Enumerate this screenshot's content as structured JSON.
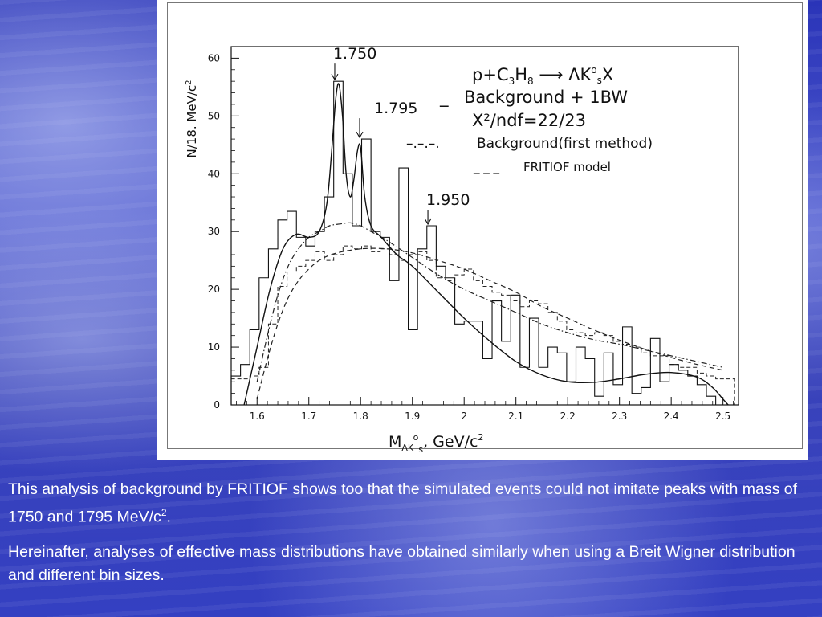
{
  "chart_data": {
    "type": "histogram",
    "xlabel": "M<sub>ΛK⁰s</sub>, GeV/c²",
    "xlabel_main": "M",
    "xlabel_sub": "ΛK",
    "xlabel_sup": "o",
    "xlabel_sub2": "s",
    "xlabel_tail": ", GeV/c",
    "xlabel_tail_sup": "2",
    "ylabel": "N/18. MeV/c",
    "ylabel_sup": "2",
    "xlim": [
      1.55,
      2.53
    ],
    "ylim": [
      0,
      62
    ],
    "x_ticks": [
      "1.6",
      "1.7",
      "1.8",
      "1.9",
      "2",
      "2.1",
      "2.2",
      "2.3",
      "2.4",
      "2.5"
    ],
    "x_tick_values": [
      1.6,
      1.7,
      1.8,
      1.9,
      2.0,
      2.1,
      2.2,
      2.3,
      2.4,
      2.5
    ],
    "y_ticks": [
      "0",
      "10",
      "20",
      "30",
      "40",
      "50",
      "60"
    ],
    "y_tick_values": [
      0,
      10,
      20,
      30,
      40,
      50,
      60
    ],
    "reaction": {
      "lhs": "p+C",
      "c_sub": "3",
      "h": "H",
      "h_sub": "8",
      "rhs": "ΛK",
      "k_sup": "o",
      "k_sub": "s",
      "x": "X"
    },
    "legend": [
      {
        "marker": "_",
        "text": "Background + 1BW"
      },
      {
        "marker": "",
        "text": "X²/ndf=22/23"
      },
      {
        "marker": "–.–.–.",
        "text": "Background(first method)"
      },
      {
        "marker": "_ _ _",
        "text": "FRITIOF model"
      }
    ],
    "annotations": [
      {
        "text": "1.750",
        "x": 1.75,
        "y": 56
      },
      {
        "text": "1.795",
        "x": 1.795,
        "y": 46
      },
      {
        "text": "1.950",
        "x": 1.93,
        "y": 31
      }
    ],
    "data_histogram": {
      "name": "",
      "edges": [
        1.55,
        1.568,
        1.586,
        1.604,
        1.622,
        1.64,
        1.658,
        1.676,
        1.694,
        1.712,
        1.73,
        1.748,
        1.766,
        1.784,
        1.802,
        1.82,
        1.838,
        1.856,
        1.874,
        1.892,
        1.91,
        1.928,
        1.946,
        1.964,
        1.982,
        2.0,
        2.018,
        2.036,
        2.054,
        2.072,
        2.09,
        2.108,
        2.126,
        2.144,
        2.162,
        2.18,
        2.198,
        2.216,
        2.234,
        2.252,
        2.27,
        2.288,
        2.306,
        2.324,
        2.342,
        2.36,
        2.378,
        2.396,
        2.414,
        2.432,
        2.45,
        2.468,
        2.486,
        2.504
      ],
      "values": [
        5,
        7,
        13,
        22,
        27,
        32,
        33.5,
        29,
        27.5,
        30,
        36,
        56,
        40,
        31,
        46,
        30,
        29,
        21.5,
        41,
        13,
        27,
        31,
        24,
        22,
        14,
        14.5,
        14.5,
        8,
        18,
        11,
        19,
        6.5,
        15,
        6.5,
        10,
        9,
        4,
        10,
        8,
        1.5,
        9,
        3.5,
        13.5,
        2,
        3,
        11.5,
        4,
        7,
        6,
        5,
        3.5,
        1.5,
        0
      ]
    },
    "fritiof_histogram": {
      "name": "",
      "edges": [
        1.55,
        1.568,
        1.586,
        1.604,
        1.622,
        1.64,
        1.658,
        1.676,
        1.694,
        1.712,
        1.73,
        1.748,
        1.766,
        1.784,
        1.802,
        1.82,
        1.838,
        1.856,
        1.874,
        1.892,
        1.91,
        1.928,
        1.946,
        1.964,
        1.982,
        2.0,
        2.018,
        2.036,
        2.054,
        2.072,
        2.09,
        2.108,
        2.126,
        2.144,
        2.162,
        2.18,
        2.198,
        2.216,
        2.234,
        2.252,
        2.27,
        2.288,
        2.306,
        2.324,
        2.342,
        2.36,
        2.378,
        2.396,
        2.414,
        2.432,
        2.45,
        2.468,
        2.486,
        2.504,
        2.522
      ],
      "values": [
        4.5,
        4.5,
        5,
        6.5,
        14,
        20.5,
        23,
        24,
        25,
        26.5,
        25,
        26,
        27.5,
        27,
        27.5,
        26.5,
        27,
        26,
        25,
        26,
        26.5,
        25,
        22,
        21.5,
        22.5,
        23.5,
        21.5,
        20.5,
        19.5,
        19,
        18,
        17,
        18,
        17.5,
        16,
        14.5,
        13,
        12.5,
        12,
        12.5,
        12,
        11,
        10.5,
        10,
        9,
        8.5,
        8.5,
        7,
        6.5,
        6.5,
        5.5,
        5,
        4.5,
        4.5
      ]
    },
    "fit_curve": {
      "name": "",
      "x": [
        1.575,
        1.6,
        1.625,
        1.65,
        1.675,
        1.7,
        1.72,
        1.735,
        1.745,
        1.752,
        1.758,
        1.765,
        1.772,
        1.78,
        1.787,
        1.794,
        1.8,
        1.808,
        1.82,
        1.84,
        1.87,
        1.9,
        1.95,
        2.0,
        2.05,
        2.1,
        2.15,
        2.2,
        2.25,
        2.3,
        2.35,
        2.4,
        2.45,
        2.48,
        2.5,
        2.51
      ],
      "y": [
        0,
        10,
        20,
        27,
        29.5,
        29,
        30,
        35,
        45,
        53,
        55.5,
        50,
        40,
        36,
        39,
        44,
        44.5,
        36,
        31,
        29,
        26,
        24,
        19.5,
        15,
        11,
        7.5,
        5.2,
        4,
        3.9,
        4.5,
        5.3,
        5.6,
        4.8,
        3,
        1,
        0
      ]
    },
    "background_curve": {
      "name": "",
      "x": [
        1.6,
        1.62,
        1.64,
        1.66,
        1.68,
        1.7,
        1.72,
        1.74,
        1.76,
        1.78,
        1.8,
        1.82,
        1.85,
        1.9,
        1.95,
        2.0,
        2.05,
        2.1,
        2.15,
        2.2,
        2.25,
        2.3,
        2.35,
        2.4,
        2.45,
        2.5
      ],
      "y": [
        4,
        12,
        19,
        24,
        27,
        29,
        30,
        31,
        31.3,
        31.5,
        31,
        30,
        28.5,
        25.5,
        22.5,
        20,
        18,
        16,
        14,
        12.5,
        11.3,
        10.5,
        9.5,
        8.5,
        7.5,
        6.5
      ]
    },
    "fritiof_curve": {
      "name": "",
      "x": [
        1.6,
        1.62,
        1.64,
        1.66,
        1.68,
        1.7,
        1.72,
        1.75,
        1.8,
        1.85,
        1.9,
        1.95,
        2.0,
        2.05,
        2.1,
        2.15,
        2.2,
        2.25,
        2.3,
        2.35,
        2.4,
        2.45,
        2.5
      ],
      "y": [
        1,
        8,
        14,
        18.5,
        21.5,
        23.5,
        25,
        26.2,
        27,
        27,
        26.3,
        25,
        23.5,
        21.5,
        19.5,
        17,
        15,
        13,
        11.2,
        9.6,
        8.2,
        7,
        6
      ]
    }
  },
  "caption": {
    "p1": "  This  analysis of background by FRITIOF shows  too that  the simulated events could not imitate  peaks  with  mass of 1750 and 1795  MeV/c",
    "p1_sup": "2",
    "p1_end": ".",
    "p2": " Hereinafter, analyses of effective mass distributions have obtained  similarly when using a Breit Wigner distribution and different bin sizes."
  }
}
